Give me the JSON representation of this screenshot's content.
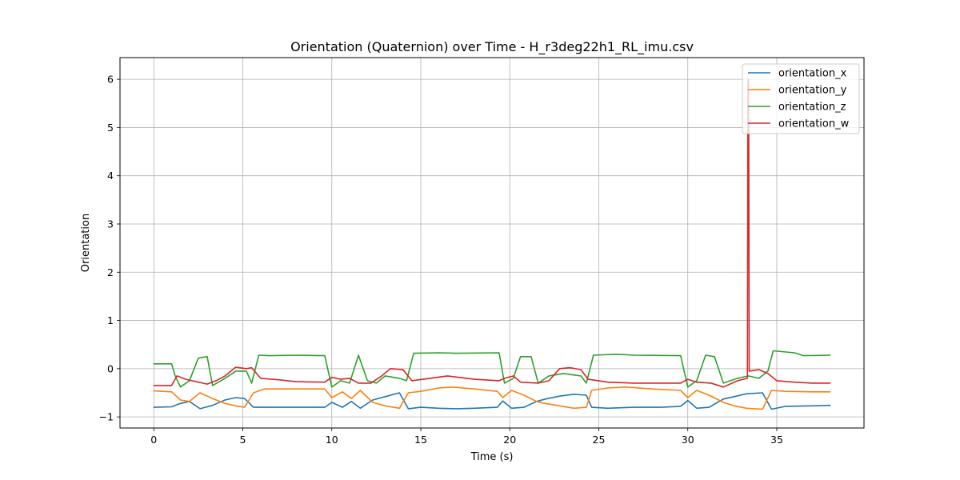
{
  "chart_data": {
    "type": "line",
    "title": "Orientation (Quaternion) over Time - H_r3deg22h1_RL_imu.csv",
    "xlabel": "Time (s)",
    "ylabel": "Orientation",
    "xlim": [
      -1.9,
      39.9
    ],
    "ylim": [
      -1.23,
      6.45
    ],
    "xticks": [
      0,
      5,
      10,
      15,
      20,
      25,
      30,
      35
    ],
    "xtick_labels": [
      "0",
      "5",
      "10",
      "15",
      "20",
      "25",
      "30",
      "35"
    ],
    "yticks": [
      -1,
      0,
      1,
      2,
      3,
      4,
      5,
      6
    ],
    "ytick_labels": [
      "−1",
      "0",
      "1",
      "2",
      "3",
      "4",
      "5",
      "6"
    ],
    "grid": true,
    "legend_position": "top-right",
    "series": [
      {
        "name": "orientation_x",
        "color": "#1f77b4",
        "points": [
          [
            0,
            -0.8
          ],
          [
            1,
            -0.79
          ],
          [
            1.5,
            -0.72
          ],
          [
            2,
            -0.68
          ],
          [
            2.6,
            -0.83
          ],
          [
            3.3,
            -0.76
          ],
          [
            4,
            -0.65
          ],
          [
            4.6,
            -0.6
          ],
          [
            5.1,
            -0.62
          ],
          [
            5.6,
            -0.8
          ],
          [
            6.5,
            -0.8
          ],
          [
            8,
            -0.8
          ],
          [
            9.6,
            -0.8
          ],
          [
            10,
            -0.7
          ],
          [
            10.6,
            -0.8
          ],
          [
            11.1,
            -0.68
          ],
          [
            11.6,
            -0.82
          ],
          [
            12.3,
            -0.65
          ],
          [
            13,
            -0.58
          ],
          [
            13.8,
            -0.5
          ],
          [
            14.3,
            -0.83
          ],
          [
            15,
            -0.8
          ],
          [
            16,
            -0.82
          ],
          [
            17,
            -0.83
          ],
          [
            18,
            -0.82
          ],
          [
            19.3,
            -0.8
          ],
          [
            19.6,
            -0.67
          ],
          [
            20.1,
            -0.82
          ],
          [
            20.8,
            -0.8
          ],
          [
            21.5,
            -0.68
          ],
          [
            22,
            -0.63
          ],
          [
            22.8,
            -0.57
          ],
          [
            23.6,
            -0.53
          ],
          [
            24.3,
            -0.55
          ],
          [
            24.6,
            -0.8
          ],
          [
            25.5,
            -0.82
          ],
          [
            27,
            -0.8
          ],
          [
            28.5,
            -0.8
          ],
          [
            29.6,
            -0.78
          ],
          [
            30,
            -0.66
          ],
          [
            30.5,
            -0.82
          ],
          [
            31.2,
            -0.8
          ],
          [
            32,
            -0.63
          ],
          [
            32.6,
            -0.58
          ],
          [
            33.3,
            -0.52
          ],
          [
            34.2,
            -0.5
          ],
          [
            34.7,
            -0.84
          ],
          [
            35.5,
            -0.78
          ],
          [
            37,
            -0.77
          ],
          [
            38,
            -0.76
          ]
        ]
      },
      {
        "name": "orientation_y",
        "color": "#ff7f0e",
        "points": [
          [
            0,
            -0.46
          ],
          [
            1,
            -0.48
          ],
          [
            1.5,
            -0.65
          ],
          [
            2,
            -0.68
          ],
          [
            2.6,
            -0.5
          ],
          [
            3.3,
            -0.62
          ],
          [
            4,
            -0.72
          ],
          [
            4.6,
            -0.77
          ],
          [
            5.1,
            -0.8
          ],
          [
            5.6,
            -0.5
          ],
          [
            6.2,
            -0.42
          ],
          [
            8,
            -0.42
          ],
          [
            9.6,
            -0.42
          ],
          [
            10,
            -0.6
          ],
          [
            10.6,
            -0.48
          ],
          [
            11.1,
            -0.62
          ],
          [
            11.6,
            -0.45
          ],
          [
            12.3,
            -0.7
          ],
          [
            13,
            -0.77
          ],
          [
            13.8,
            -0.82
          ],
          [
            14.3,
            -0.5
          ],
          [
            15,
            -0.47
          ],
          [
            16,
            -0.4
          ],
          [
            16.8,
            -0.38
          ],
          [
            18,
            -0.42
          ],
          [
            19.3,
            -0.47
          ],
          [
            19.6,
            -0.6
          ],
          [
            20.1,
            -0.45
          ],
          [
            20.8,
            -0.55
          ],
          [
            21.5,
            -0.68
          ],
          [
            22,
            -0.72
          ],
          [
            22.8,
            -0.77
          ],
          [
            23.6,
            -0.82
          ],
          [
            24.3,
            -0.8
          ],
          [
            24.6,
            -0.45
          ],
          [
            25.5,
            -0.4
          ],
          [
            26.5,
            -0.38
          ],
          [
            28,
            -0.42
          ],
          [
            29.6,
            -0.45
          ],
          [
            30,
            -0.6
          ],
          [
            30.5,
            -0.45
          ],
          [
            31.2,
            -0.55
          ],
          [
            32,
            -0.7
          ],
          [
            32.6,
            -0.77
          ],
          [
            33.3,
            -0.82
          ],
          [
            34.2,
            -0.84
          ],
          [
            34.7,
            -0.45
          ],
          [
            35.5,
            -0.47
          ],
          [
            37,
            -0.48
          ],
          [
            38,
            -0.48
          ]
        ]
      },
      {
        "name": "orientation_z",
        "color": "#2ca02c",
        "points": [
          [
            0,
            0.1
          ],
          [
            1,
            0.1
          ],
          [
            1.2,
            -0.15
          ],
          [
            1.5,
            -0.38
          ],
          [
            2,
            -0.25
          ],
          [
            2.5,
            0.22
          ],
          [
            3,
            0.25
          ],
          [
            3.3,
            -0.35
          ],
          [
            4,
            -0.2
          ],
          [
            4.6,
            -0.05
          ],
          [
            5.2,
            -0.05
          ],
          [
            5.5,
            -0.3
          ],
          [
            5.9,
            0.28
          ],
          [
            6.5,
            0.27
          ],
          [
            8,
            0.28
          ],
          [
            9.6,
            0.27
          ],
          [
            10,
            -0.38
          ],
          [
            10.5,
            -0.25
          ],
          [
            11,
            -0.3
          ],
          [
            11.5,
            0.28
          ],
          [
            12,
            -0.25
          ],
          [
            12.5,
            -0.3
          ],
          [
            13,
            -0.15
          ],
          [
            13.8,
            -0.2
          ],
          [
            14.2,
            -0.25
          ],
          [
            14.6,
            0.32
          ],
          [
            16,
            0.33
          ],
          [
            17,
            0.32
          ],
          [
            19.4,
            0.33
          ],
          [
            19.7,
            -0.3
          ],
          [
            20.2,
            -0.2
          ],
          [
            20.6,
            0.25
          ],
          [
            21.2,
            0.25
          ],
          [
            21.6,
            -0.3
          ],
          [
            22.2,
            -0.15
          ],
          [
            23,
            -0.1
          ],
          [
            24,
            -0.15
          ],
          [
            24.3,
            -0.3
          ],
          [
            24.7,
            0.28
          ],
          [
            26,
            0.3
          ],
          [
            27,
            0.28
          ],
          [
            29.6,
            0.27
          ],
          [
            30,
            -0.38
          ],
          [
            30.5,
            -0.25
          ],
          [
            31,
            0.28
          ],
          [
            31.5,
            0.25
          ],
          [
            32,
            -0.3
          ],
          [
            32.8,
            -0.2
          ],
          [
            33.4,
            -0.15
          ],
          [
            34,
            -0.2
          ],
          [
            34.5,
            -0.05
          ],
          [
            34.8,
            0.37
          ],
          [
            36,
            0.33
          ],
          [
            36.5,
            0.27
          ],
          [
            38,
            0.28
          ]
        ]
      },
      {
        "name": "orientation_w",
        "color": "#d62728",
        "points": [
          [
            0,
            -0.35
          ],
          [
            1,
            -0.35
          ],
          [
            1.3,
            -0.15
          ],
          [
            1.8,
            -0.22
          ],
          [
            2.5,
            -0.28
          ],
          [
            3,
            -0.32
          ],
          [
            3.5,
            -0.25
          ],
          [
            4,
            -0.15
          ],
          [
            4.6,
            0.03
          ],
          [
            5.2,
            0.0
          ],
          [
            5.5,
            0.02
          ],
          [
            6,
            -0.2
          ],
          [
            7,
            -0.23
          ],
          [
            8,
            -0.27
          ],
          [
            9.6,
            -0.28
          ],
          [
            10,
            -0.18
          ],
          [
            10.5,
            -0.22
          ],
          [
            11,
            -0.2
          ],
          [
            11.5,
            -0.3
          ],
          [
            12.2,
            -0.3
          ],
          [
            12.8,
            -0.15
          ],
          [
            13.3,
            0.0
          ],
          [
            14,
            -0.02
          ],
          [
            14.5,
            -0.25
          ],
          [
            15.5,
            -0.2
          ],
          [
            16.5,
            -0.15
          ],
          [
            18,
            -0.22
          ],
          [
            19.4,
            -0.25
          ],
          [
            19.7,
            -0.2
          ],
          [
            20.2,
            -0.15
          ],
          [
            20.6,
            -0.28
          ],
          [
            21.6,
            -0.3
          ],
          [
            22.2,
            -0.25
          ],
          [
            22.8,
            0.0
          ],
          [
            23.4,
            0.02
          ],
          [
            24,
            -0.02
          ],
          [
            24.4,
            -0.22
          ],
          [
            25.5,
            -0.28
          ],
          [
            27,
            -0.3
          ],
          [
            29.6,
            -0.3
          ],
          [
            30,
            -0.22
          ],
          [
            30.5,
            -0.28
          ],
          [
            31.3,
            -0.3
          ],
          [
            32,
            -0.38
          ],
          [
            32.8,
            -0.25
          ],
          [
            33.35,
            -0.2
          ],
          [
            33.38,
            6.0
          ],
          [
            33.42,
            6.0
          ],
          [
            33.45,
            -0.05
          ],
          [
            34,
            -0.02
          ],
          [
            34.5,
            -0.1
          ],
          [
            35,
            -0.25
          ],
          [
            36,
            -0.28
          ],
          [
            37,
            -0.3
          ],
          [
            38,
            -0.3
          ]
        ]
      }
    ]
  }
}
